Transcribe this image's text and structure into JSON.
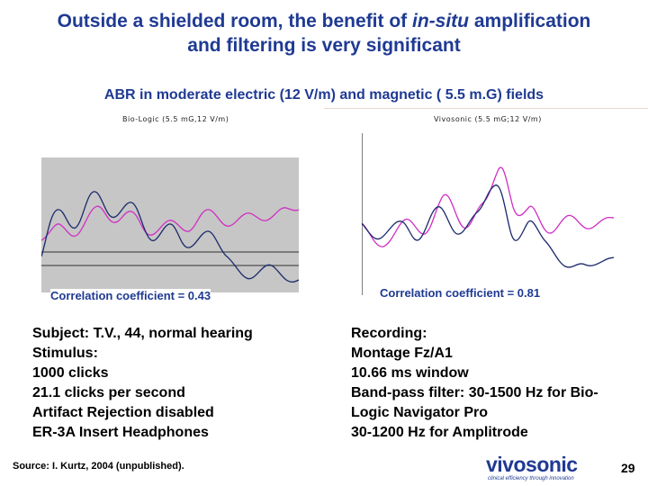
{
  "slide": {
    "title_line1": "Outside a shielded room, the benefit of in-situ amplification",
    "title_line2": "and filtering is very significant",
    "subtitle": "ABR in moderate electric (12 V/m) and magnetic ( 5.5 m.G) fields",
    "colors": {
      "title": "#1f3a93",
      "trace_magenta": "#d12fc4",
      "trace_navy": "#1b2a6b",
      "plot_bg_left": "#c6c6c6"
    }
  },
  "left_panel": {
    "label": "Bio-Logic (5.5 mG,12 V/m)",
    "correlation": "Correlation coefficient = 0.43",
    "info": [
      "Subject: T.V., 44, normal hearing",
      "Stimulus:",
      "1000 clicks",
      "21.1 clicks per second",
      "Artifact Rejection disabled",
      "ER-3A Insert Headphones"
    ]
  },
  "right_panel": {
    "label": "Vivosonic (5.5 mG;12 V/m)",
    "correlation": "Correlation coefficient = 0.81",
    "info": [
      "Recording:",
      "Montage Fz/A1",
      "10.66 ms window",
      "Band-pass filter: 30-1500 Hz for Bio-",
      "Logic Navigator Pro",
      "30-1200 Hz for Amplitrode"
    ]
  },
  "footer": {
    "source": "Source: I. Kurtz, 2004 (unpublished).",
    "logo_text": "vivosonic",
    "logo_tagline": "clinical efficiency through innovation",
    "page_number": "29"
  }
}
